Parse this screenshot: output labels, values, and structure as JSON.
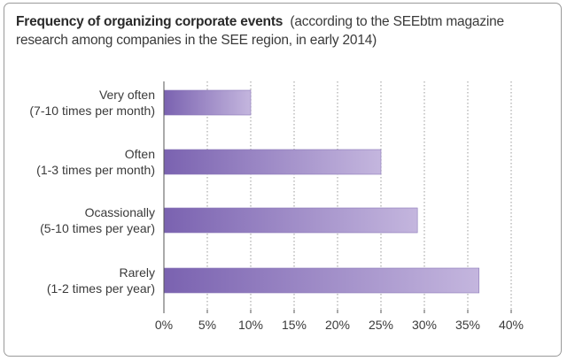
{
  "chart_data": {
    "type": "bar",
    "orientation": "horizontal",
    "title": "Frequency of organizing corporate events",
    "subtitle": "(according to the SEEbtm magazine research among companies in the SEE region, in early 2014)",
    "categories": [
      [
        "Very often",
        "(7-10 times per month)"
      ],
      [
        "Often",
        "(1-3 times per month)"
      ],
      [
        "Ocassionally",
        "(5-10 times per year)"
      ],
      [
        "Rarely",
        "(1-2 times per year)"
      ]
    ],
    "values": [
      10,
      25,
      29.2,
      36.3
    ],
    "xlim": [
      0,
      40
    ],
    "xticks": [
      "0%",
      "5%",
      "10%",
      "15%",
      "20%",
      "25%",
      "30%",
      "35%",
      "40%"
    ],
    "xtick_values": [
      0,
      5,
      10,
      15,
      20,
      25,
      30,
      35,
      40
    ],
    "grid": "vertical",
    "legend": "none",
    "colors": {
      "bar_start": "#7a62b0",
      "bar_end": "#c4b6de",
      "grid": "#9a9a9a",
      "axis": "#555555"
    }
  }
}
